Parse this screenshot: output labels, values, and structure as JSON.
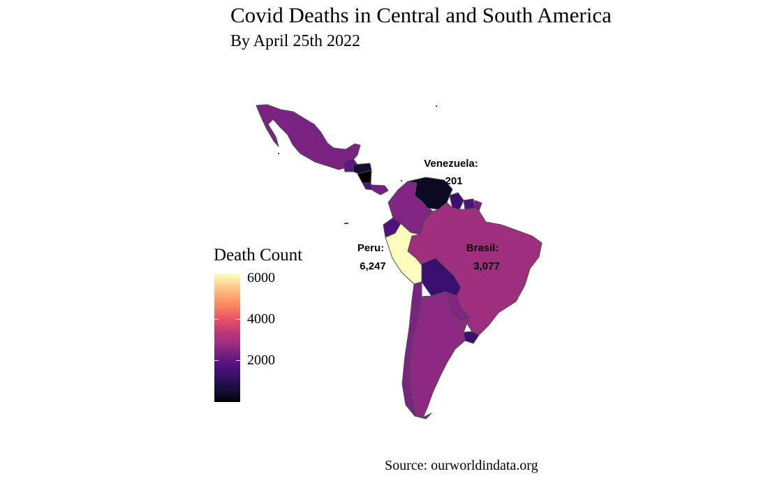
{
  "title": "Covid Deaths in Central and South America",
  "subtitle": "By April 25th 2022",
  "source": "Source: ourworldindata.org",
  "legend": {
    "title": "Death Count",
    "ticks": [
      {
        "label": "6000",
        "value": 6000
      },
      {
        "label": "4000",
        "value": 4000
      },
      {
        "label": "2000",
        "value": 2000
      }
    ],
    "range": [
      0,
      6247
    ],
    "palette": "magma"
  },
  "annotations": {
    "venezuela_name": "Venezuela:",
    "venezuela_value": "201",
    "peru_name": "Peru:",
    "peru_value": "6,247",
    "brasil_name": "Brasil:",
    "brasil_value": "3,077"
  },
  "colors": {
    "mexico": "#7b2382",
    "central_america": "#5c167f",
    "honduras": "#140e36",
    "nicaragua": "#000004",
    "costa_rica": "#51127c",
    "panama": "#721f81",
    "colombia": "#802582",
    "venezuela": "#0b0924",
    "guyana": "#3b0f70",
    "suriname": "#51127c",
    "french_guiana": "#721f81",
    "ecuador": "#51127c",
    "peru": "#fcfdbf",
    "brazil": "#9e2f7f",
    "bolivia": "#3b0f70",
    "paraguay": "#802582",
    "uruguay": "#3b0f70",
    "chile": "#7b2382",
    "argentina": "#8c2981"
  }
}
